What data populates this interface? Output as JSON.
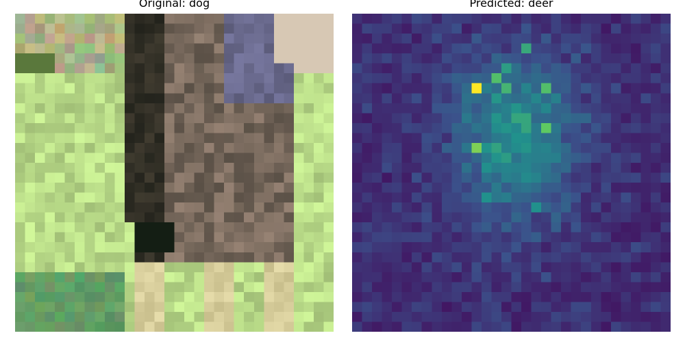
{
  "panels": {
    "left": {
      "title": "Original: dog"
    },
    "right": {
      "title": "Predicted: deer"
    }
  },
  "image": {
    "grid_size": 32,
    "description_palette": [
      "#1d2017",
      "#3d3c33",
      "#6d685f",
      "#867768",
      "#5a5b8a",
      "#cbe39a",
      "#b6d48a",
      "#6fa25b",
      "#3e7a3e",
      "#d6bda9"
    ]
  },
  "heatmap": {
    "colormap": "viridis",
    "grid_size": 32
  }
}
